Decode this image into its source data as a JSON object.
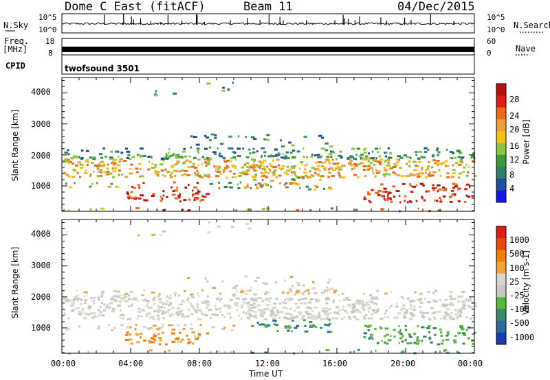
{
  "header": {
    "station": "Dome C East (fitACF)",
    "beam": "Beam 11",
    "date": "04/Dec/2015"
  },
  "panels": {
    "nsky": {
      "label": "N.Sky",
      "ytop": "10^5",
      "ybot": "10^0",
      "right_label": "N.Search",
      "right_top": "10^5",
      "right_bot": "10^0"
    },
    "freq": {
      "label_line1": "Freq.",
      "label_line2": "[MHz]",
      "ytop": "18",
      "ybot": "8",
      "right_top": "60",
      "right_bot": "0",
      "right_label": "Nave"
    },
    "cpid": {
      "label": "CPID",
      "program": "twofsound 3501"
    }
  },
  "colors": {
    "power": [
      "#1515e6",
      "#1f4fa0",
      "#2f7f6a",
      "#3c9a3a",
      "#8cc53f",
      "#f2c21a",
      "#f0a03a",
      "#ee6a1a",
      "#e21a1a",
      "#b50f0f"
    ],
    "velocity": [
      "#1a3ab8",
      "#2d6a9c",
      "#3a8a6a",
      "#55b83a",
      "#c9c9c4",
      "#d8d6cf",
      "#f2a43a",
      "#f07f0a",
      "#e84a0a",
      "#e01a1a"
    ]
  },
  "chart_data": [
    {
      "type": "heatmap",
      "title": "",
      "xlabel": "",
      "ylabel": "Slant Range [km]",
      "xlim": [
        "00:00",
        "00:00"
      ],
      "ylim": [
        180,
        4500
      ],
      "yticks": [
        "1000",
        "2000",
        "3000",
        "4000"
      ],
      "xticks": [
        "00:00",
        "04:00",
        "08:00",
        "12:00",
        "16:00",
        "20:00",
        "00:00"
      ],
      "colorbar": {
        "label": "Power [dB]",
        "ticks": [
          "4",
          "8",
          "12",
          "16",
          "20",
          "24",
          "28"
        ]
      }
    },
    {
      "type": "heatmap",
      "title": "",
      "xlabel": "Time UT",
      "ylabel": "Slant Range [km]",
      "xlim": [
        "00:00",
        "00:00"
      ],
      "ylim": [
        180,
        4500
      ],
      "yticks": [
        "1000",
        "2000",
        "3000",
        "4000"
      ],
      "xticks": [
        "00:00",
        "04:00",
        "08:00",
        "12:00",
        "16:00",
        "20:00",
        "00:00"
      ],
      "colorbar": {
        "label": "Velocity [m s-1]",
        "ticks": [
          "1000",
          "500",
          "100",
          "25",
          "-25",
          "-100",
          "-500",
          "-1000"
        ]
      }
    }
  ]
}
